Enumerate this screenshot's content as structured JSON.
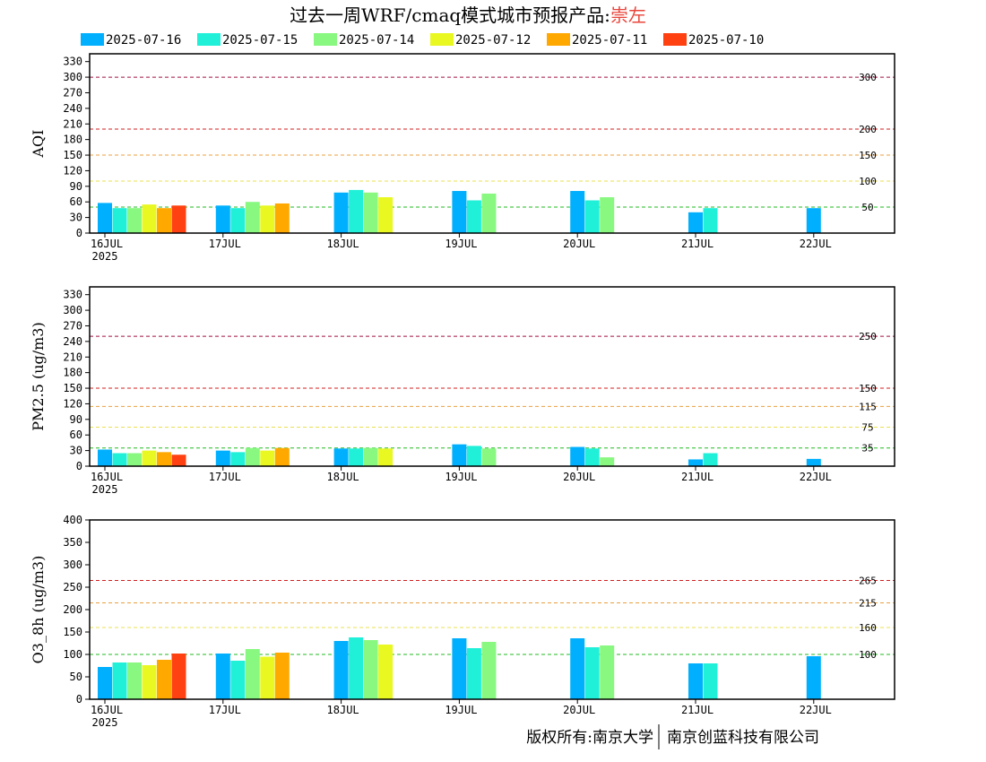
{
  "title": {
    "prefix": "过去一周WRF/cmaq模式城市预报产品:",
    "city": "崇左",
    "city_color": "#e8443a"
  },
  "legend": [
    {
      "label": "2025-07-16",
      "color": "#00b0ff"
    },
    {
      "label": "2025-07-15",
      "color": "#20f0d8"
    },
    {
      "label": "2025-07-14",
      "color": "#88f880"
    },
    {
      "label": "2025-07-12",
      "color": "#e8f820"
    },
    {
      "label": "2025-07-11",
      "color": "#ffa800"
    },
    {
      "label": "2025-07-10",
      "color": "#ff4010"
    }
  ],
  "copyright": {
    "left": "版权所有:南京大学",
    "right": "南京创蓝科技有限公司"
  },
  "chart_data": [
    {
      "type": "bar",
      "ylabel": "AQI",
      "ylim": [
        0,
        345
      ],
      "yticks": [
        0,
        30,
        60,
        90,
        120,
        150,
        180,
        210,
        240,
        270,
        300,
        330
      ],
      "xticks": [
        {
          "day": 0,
          "label": "16JUL",
          "sub": "2025"
        },
        {
          "day": 1,
          "label": "17JUL"
        },
        {
          "day": 2,
          "label": "18JUL"
        },
        {
          "day": 3,
          "label": "19JUL"
        },
        {
          "day": 4,
          "label": "20JUL"
        },
        {
          "day": 5,
          "label": "21JUL"
        },
        {
          "day": 6,
          "label": "22JUL"
        }
      ],
      "reflines": [
        {
          "value": 50,
          "label": "50",
          "color": "#22bb22"
        },
        {
          "value": 100,
          "label": "100",
          "color": "#e8e050"
        },
        {
          "value": 150,
          "label": "150",
          "color": "#e8a040"
        },
        {
          "value": 200,
          "label": "200",
          "color": "#d02020"
        },
        {
          "value": 300,
          "label": "300",
          "color": "#a01040"
        }
      ],
      "series": [
        {
          "name": "2025-07-16",
          "values": [
            [
              0,
              58
            ],
            [
              1,
              53
            ],
            [
              2,
              78
            ],
            [
              3,
              81
            ],
            [
              4,
              81
            ],
            [
              5,
              40
            ],
            [
              6,
              48
            ]
          ]
        },
        {
          "name": "2025-07-15",
          "values": [
            [
              0,
              48
            ],
            [
              1,
              48
            ],
            [
              2,
              83
            ],
            [
              3,
              63
            ],
            [
              4,
              63
            ],
            [
              5,
              48
            ]
          ]
        },
        {
          "name": "2025-07-14",
          "values": [
            [
              0,
              48
            ],
            [
              1,
              60
            ],
            [
              2,
              78
            ],
            [
              3,
              76
            ],
            [
              4,
              69
            ]
          ]
        },
        {
          "name": "2025-07-12",
          "values": [
            [
              0,
              55
            ],
            [
              1,
              53
            ],
            [
              2,
              69
            ]
          ]
        },
        {
          "name": "2025-07-11",
          "values": [
            [
              0,
              48
            ],
            [
              1,
              57
            ]
          ]
        },
        {
          "name": "2025-07-10",
          "values": [
            [
              0,
              53
            ]
          ]
        }
      ]
    },
    {
      "type": "bar",
      "ylabel": "PM2.5 (ug/m3)",
      "ylim": [
        0,
        345
      ],
      "yticks": [
        0,
        30,
        60,
        90,
        120,
        150,
        180,
        210,
        240,
        270,
        300,
        330
      ],
      "xticks": [
        {
          "day": 0,
          "label": "16JUL",
          "sub": "2025"
        },
        {
          "day": 1,
          "label": "17JUL"
        },
        {
          "day": 2,
          "label": "18JUL"
        },
        {
          "day": 3,
          "label": "19JUL"
        },
        {
          "day": 4,
          "label": "20JUL"
        },
        {
          "day": 5,
          "label": "21JUL"
        },
        {
          "day": 6,
          "label": "22JUL"
        }
      ],
      "reflines": [
        {
          "value": 35,
          "label": "35",
          "color": "#22bb22"
        },
        {
          "value": 75,
          "label": "75",
          "color": "#e8e050"
        },
        {
          "value": 115,
          "label": "115",
          "color": "#e8a040"
        },
        {
          "value": 150,
          "label": "150",
          "color": "#d02020"
        },
        {
          "value": 250,
          "label": "250",
          "color": "#a01040"
        }
      ],
      "series": [
        {
          "name": "2025-07-16",
          "values": [
            [
              0,
              32
            ],
            [
              1,
              30
            ],
            [
              2,
              34
            ],
            [
              3,
              42
            ],
            [
              4,
              37
            ],
            [
              5,
              13
            ],
            [
              6,
              14
            ]
          ]
        },
        {
          "name": "2025-07-15",
          "values": [
            [
              0,
              25
            ],
            [
              1,
              27
            ],
            [
              2,
              34
            ],
            [
              3,
              39
            ],
            [
              4,
              34
            ],
            [
              5,
              25
            ]
          ]
        },
        {
          "name": "2025-07-14",
          "values": [
            [
              0,
              25
            ],
            [
              1,
              35
            ],
            [
              2,
              35
            ],
            [
              3,
              34
            ],
            [
              4,
              17
            ]
          ]
        },
        {
          "name": "2025-07-12",
          "values": [
            [
              0,
              30
            ],
            [
              1,
              30
            ],
            [
              2,
              34
            ]
          ]
        },
        {
          "name": "2025-07-11",
          "values": [
            [
              0,
              27
            ],
            [
              1,
              35
            ]
          ]
        },
        {
          "name": "2025-07-10",
          "values": [
            [
              0,
              22
            ]
          ]
        }
      ]
    },
    {
      "type": "bar",
      "ylabel": "O3_8h (ug/m3)",
      "ylim": [
        0,
        400
      ],
      "yticks": [
        0,
        50,
        100,
        150,
        200,
        250,
        300,
        350,
        400
      ],
      "xticks": [
        {
          "day": 0,
          "label": "16JUL",
          "sub": "2025"
        },
        {
          "day": 1,
          "label": "17JUL"
        },
        {
          "day": 2,
          "label": "18JUL"
        },
        {
          "day": 3,
          "label": "19JUL"
        },
        {
          "day": 4,
          "label": "20JUL"
        },
        {
          "day": 5,
          "label": "21JUL"
        },
        {
          "day": 6,
          "label": "22JUL"
        }
      ],
      "reflines": [
        {
          "value": 100,
          "label": "100",
          "color": "#22bb22"
        },
        {
          "value": 160,
          "label": "160",
          "color": "#e8e050"
        },
        {
          "value": 215,
          "label": "215",
          "color": "#e8a040"
        },
        {
          "value": 265,
          "label": "265",
          "color": "#d02020"
        }
      ],
      "series": [
        {
          "name": "2025-07-16",
          "values": [
            [
              0,
              72
            ],
            [
              1,
              102
            ],
            [
              2,
              130
            ],
            [
              3,
              136
            ],
            [
              4,
              136
            ],
            [
              5,
              80
            ],
            [
              6,
              96
            ]
          ]
        },
        {
          "name": "2025-07-15",
          "values": [
            [
              0,
              82
            ],
            [
              1,
              86
            ],
            [
              2,
              138
            ],
            [
              3,
              114
            ],
            [
              4,
              116
            ],
            [
              5,
              80
            ]
          ]
        },
        {
          "name": "2025-07-14",
          "values": [
            [
              0,
              82
            ],
            [
              1,
              112
            ],
            [
              2,
              132
            ],
            [
              3,
              128
            ],
            [
              4,
              120
            ]
          ]
        },
        {
          "name": "2025-07-12",
          "values": [
            [
              0,
              76
            ],
            [
              1,
              95
            ],
            [
              2,
              122
            ]
          ]
        },
        {
          "name": "2025-07-11",
          "values": [
            [
              0,
              88
            ],
            [
              1,
              104
            ]
          ]
        },
        {
          "name": "2025-07-10",
          "values": [
            [
              0,
              102
            ]
          ]
        }
      ]
    }
  ]
}
